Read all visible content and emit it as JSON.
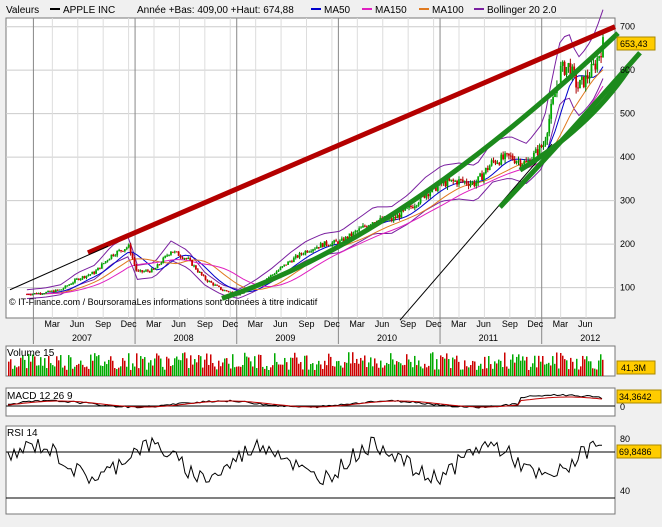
{
  "chart_data": {
    "type": "candlestick",
    "legend": {
      "valeurs": "Valeurs",
      "symbol": "APPLE INC",
      "range_text": "Année +Bas: 409,00 +Haut: 674,88",
      "ma50": "MA50",
      "ma150": "MA150",
      "ma100": "MA100",
      "bollinger": "Bollinger 20 2.0",
      "colors": {
        "price": "#000000",
        "ma50": "#0000cc",
        "ma150": "#e020c0",
        "ma100": "#e07a20",
        "bollinger": "#7a20a0"
      }
    },
    "copyright": "© IT-Finance.com / BoursoramaLes informations sont données à titre indicatif",
    "last_price_label": "653,43",
    "y_ticks": [
      "700",
      "600",
      "500",
      "400",
      "300",
      "200",
      "100"
    ],
    "y_tick_values": [
      700,
      600,
      500,
      400,
      300,
      200,
      100
    ],
    "ylim": [
      30,
      720
    ],
    "month_labels": [
      "Mar",
      "Jun",
      "Sep",
      "Dec",
      "Mar",
      "Jun",
      "Sep",
      "Dec",
      "Mar",
      "Jun",
      "Sep",
      "Dec",
      "Mar",
      "Jun",
      "Sep",
      "Dec",
      "Mar",
      "Jun",
      "Sep",
      "Dec",
      "Mar",
      "Jun"
    ],
    "year_labels": [
      "2007",
      "2008",
      "2009",
      "2010",
      "2011",
      "2012"
    ],
    "price_series": [
      [
        "2006-12",
        85
      ],
      [
        "2007-02",
        88
      ],
      [
        "2007-04",
        95
      ],
      [
        "2007-06",
        120
      ],
      [
        "2007-08",
        135
      ],
      [
        "2007-10",
        175
      ],
      [
        "2007-12",
        195
      ],
      [
        "2008-01",
        135
      ],
      [
        "2008-03",
        140
      ],
      [
        "2008-05",
        185
      ],
      [
        "2008-07",
        165
      ],
      [
        "2008-09",
        120
      ],
      [
        "2008-11",
        95
      ],
      [
        "2009-01",
        85
      ],
      [
        "2009-03",
        105
      ],
      [
        "2009-05",
        130
      ],
      [
        "2009-07",
        160
      ],
      [
        "2009-09",
        185
      ],
      [
        "2009-11",
        200
      ],
      [
        "2010-01",
        205
      ],
      [
        "2010-03",
        230
      ],
      [
        "2010-05",
        255
      ],
      [
        "2010-07",
        255
      ],
      [
        "2010-09",
        280
      ],
      [
        "2010-11",
        315
      ],
      [
        "2011-01",
        340
      ],
      [
        "2011-03",
        345
      ],
      [
        "2011-05",
        340
      ],
      [
        "2011-07",
        390
      ],
      [
        "2011-09",
        400
      ],
      [
        "2011-11",
        385
      ],
      [
        "2012-01",
        430
      ],
      [
        "2012-02",
        520
      ],
      [
        "2012-03",
        600
      ],
      [
        "2012-04",
        610
      ],
      [
        "2012-05",
        560
      ],
      [
        "2012-06",
        580
      ],
      [
        "2012-07",
        610
      ],
      [
        "2012-08",
        660
      ]
    ],
    "indicators": {
      "volume": {
        "title": "Volume 15",
        "last_label": "41,3M"
      },
      "macd": {
        "title": "MACD 12 26 9",
        "last_label": "34,3642",
        "ticks": [
          "0"
        ]
      },
      "rsi": {
        "title": "RSI 14",
        "last_label": "69,8486",
        "ticks": [
          "80",
          "40"
        ]
      }
    }
  }
}
